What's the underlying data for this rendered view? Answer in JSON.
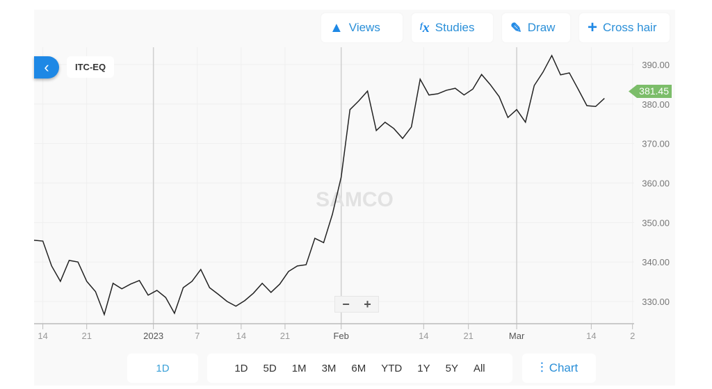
{
  "toolbar": {
    "views": "Views",
    "studies": "Studies",
    "draw": "Draw",
    "crosshair": "Cross hair"
  },
  "symbol": "ITC-EQ",
  "watermark": "SAMCO",
  "zoom": {
    "minus": "−",
    "plus": "+"
  },
  "bottom": {
    "interval": "1D",
    "ranges": [
      "1D",
      "5D",
      "1M",
      "3M",
      "6M",
      "YTD",
      "1Y",
      "5Y",
      "All"
    ],
    "chart": "Chart"
  },
  "colors": {
    "accent": "#1e88e5",
    "line": "#222222",
    "last_price": "#7cbd6a"
  },
  "chart_data": {
    "type": "line",
    "last_price_label": "381.45",
    "ylim": [
      324,
      395
    ],
    "y_ticks": [
      "330.00",
      "340.00",
      "350.00",
      "360.00",
      "370.00",
      "380.00",
      "390.00"
    ],
    "y_tick_values": [
      330,
      340,
      350,
      360,
      370,
      380,
      390
    ],
    "x_ticks": [
      {
        "label": "14",
        "date": "2022-12-14"
      },
      {
        "label": "21",
        "date": "2022-12-21"
      },
      {
        "label": "2023",
        "date": "2023-01-01",
        "major": true
      },
      {
        "label": "7",
        "date": "2023-01-07"
      },
      {
        "label": "14",
        "date": "2023-01-14"
      },
      {
        "label": "21",
        "date": "2023-01-21"
      },
      {
        "label": "Feb",
        "date": "2023-02-01",
        "major": true
      },
      {
        "label": "14",
        "date": "2023-02-14"
      },
      {
        "label": "21",
        "date": "2023-02-21"
      },
      {
        "label": "Mar",
        "date": "2023-03-01",
        "major": true
      },
      {
        "label": "14",
        "date": "2023-03-14"
      },
      {
        "label": "2",
        "date": ""
      }
    ],
    "dates": [
      "2022-12-13",
      "2022-12-14",
      "2022-12-15",
      "2022-12-16",
      "2022-12-19",
      "2022-12-20",
      "2022-12-21",
      "2022-12-22",
      "2022-12-23",
      "2022-12-26",
      "2022-12-27",
      "2022-12-28",
      "2022-12-29",
      "2022-12-30",
      "2023-01-02",
      "2023-01-03",
      "2023-01-04",
      "2023-01-05",
      "2023-01-06",
      "2023-01-09",
      "2023-01-10",
      "2023-01-11",
      "2023-01-12",
      "2023-01-13",
      "2023-01-16",
      "2023-01-17",
      "2023-01-18",
      "2023-01-19",
      "2023-01-20",
      "2023-01-23",
      "2023-01-24",
      "2023-01-25",
      "2023-01-27",
      "2023-01-30",
      "2023-01-31",
      "2023-02-01",
      "2023-02-02",
      "2023-02-03",
      "2023-02-06",
      "2023-02-07",
      "2023-02-08",
      "2023-02-09",
      "2023-02-10",
      "2023-02-13",
      "2023-02-14",
      "2023-02-15",
      "2023-02-16",
      "2023-02-17",
      "2023-02-20",
      "2023-02-21",
      "2023-02-22",
      "2023-02-23",
      "2023-02-24",
      "2023-02-27",
      "2023-02-28",
      "2023-03-01",
      "2023-03-02",
      "2023-03-03",
      "2023-03-06",
      "2023-03-08",
      "2023-03-09",
      "2023-03-10",
      "2023-03-13",
      "2023-03-14",
      "2023-03-15",
      "2023-03-16"
    ],
    "values": [
      345.5,
      345.3,
      339.0,
      335.1,
      340.4,
      340.0,
      335.1,
      332.5,
      326.7,
      334.6,
      333.2,
      334.4,
      335.3,
      331.6,
      332.8,
      331.0,
      327.0,
      333.5,
      335.1,
      338.1,
      333.5,
      331.8,
      330.0,
      328.8,
      330.2,
      332.1,
      334.6,
      332.3,
      334.4,
      337.6,
      339.0,
      339.3,
      346.0,
      344.9,
      352.1,
      361.5,
      378.6,
      380.8,
      383.3,
      373.3,
      375.4,
      373.8,
      371.3,
      374.2,
      386.3,
      382.3,
      382.6,
      383.5,
      384.0,
      382.3,
      383.8,
      387.5,
      384.9,
      381.9,
      376.6,
      378.6,
      375.4,
      384.7,
      388.1,
      392.3,
      387.4,
      387.9,
      383.8,
      379.6,
      379.4,
      381.45
    ]
  }
}
